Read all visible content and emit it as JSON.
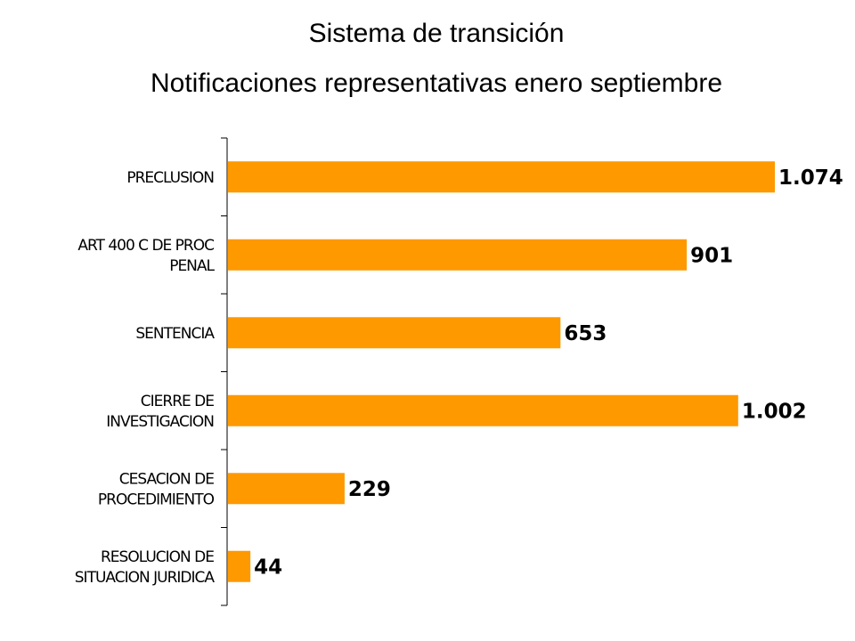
{
  "chart_data": {
    "type": "bar",
    "orientation": "horizontal",
    "title": "Sistema de transición",
    "subtitle": "Notificaciones representativas enero septiembre",
    "categories": [
      [
        "PRECLUSION"
      ],
      [
        "ART 400 C DE PROC",
        "PENAL"
      ],
      [
        "SENTENCIA"
      ],
      [
        "CIERRE DE",
        "INVESTIGACION"
      ],
      [
        "CESACION DE",
        "PROCEDIMIENTO"
      ],
      [
        "RESOLUCION DE",
        "SITUACION JURIDICA"
      ]
    ],
    "values": [
      1074,
      901,
      653,
      1002,
      229,
      44
    ],
    "value_labels": [
      "1.074",
      "901",
      "653",
      "1.002",
      "229",
      "44"
    ],
    "xlim": [
      0,
      1074
    ],
    "bar_color": "#ff9900",
    "grid": false,
    "legend": "none"
  }
}
